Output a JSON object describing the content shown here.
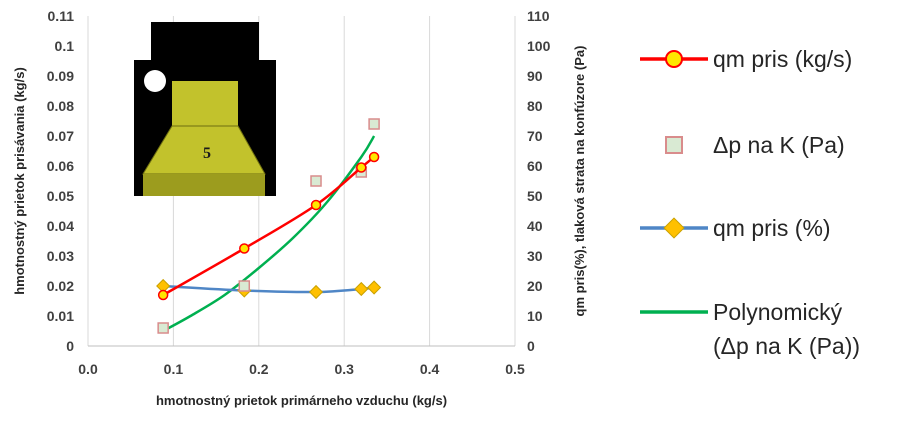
{
  "chart_data": {
    "type": "line",
    "xlabel": "hmotnostný prietok primárneho vzduchu (kg/s)",
    "ylabel_left": "hmotnostný prietok prisávania (kg/s)",
    "ylabel_right": "qm pris(%), tlaková strata na konfúzore (Pa)",
    "xlim": [
      0.0,
      0.5
    ],
    "xticks": [
      "0.0",
      "0.1",
      "0.2",
      "0.3",
      "0.4",
      "0.5"
    ],
    "ylim_left": [
      0,
      0.11
    ],
    "yticks_left": [
      "0",
      "0.01",
      "0.02",
      "0.03",
      "0.04",
      "0.05",
      "0.06",
      "0.07",
      "0.08",
      "0.09",
      "0.1",
      "0.11"
    ],
    "ylim_right": [
      0,
      110
    ],
    "yticks_right": [
      "0",
      "10",
      "20",
      "30",
      "40",
      "50",
      "60",
      "70",
      "80",
      "90",
      "100",
      "110"
    ],
    "grid": "vertical",
    "legend_position": "right",
    "series": [
      {
        "name": "qm pris (kg/s)",
        "axis": "left",
        "style": "line-circle",
        "color": "#ff0000",
        "marker_color": "#ffe600",
        "x": [
          0.088,
          0.183,
          0.267,
          0.32,
          0.335
        ],
        "y": [
          0.017,
          0.0325,
          0.047,
          0.0595,
          0.063
        ]
      },
      {
        "name": "Δp na K  (Pa)",
        "axis": "right",
        "style": "square",
        "color": "#d98c8c",
        "marker_color": "#d9ead3",
        "x": [
          0.088,
          0.183,
          0.267,
          0.32,
          0.335
        ],
        "y": [
          6,
          20,
          55,
          58,
          74
        ]
      },
      {
        "name": "qm pris (%)",
        "axis": "right",
        "style": "line-diamond",
        "color": "#4f86c6",
        "marker_color": "#ffc000",
        "x": [
          0.088,
          0.183,
          0.267,
          0.32,
          0.335
        ],
        "y": [
          20,
          18.5,
          18,
          19,
          19.5
        ]
      },
      {
        "name": "Polynomický (Δp na K  (Pa))",
        "axis": "right",
        "style": "trend",
        "color": "#00b050",
        "x": [
          0.088,
          0.12,
          0.16,
          0.2,
          0.24,
          0.28,
          0.32,
          0.335
        ],
        "y": [
          5,
          10,
          17,
          26,
          36,
          48,
          63,
          70
        ]
      }
    ],
    "inset_label": "5",
    "inset_colors": {
      "background": "#000000",
      "body": "#c2c22c"
    }
  }
}
